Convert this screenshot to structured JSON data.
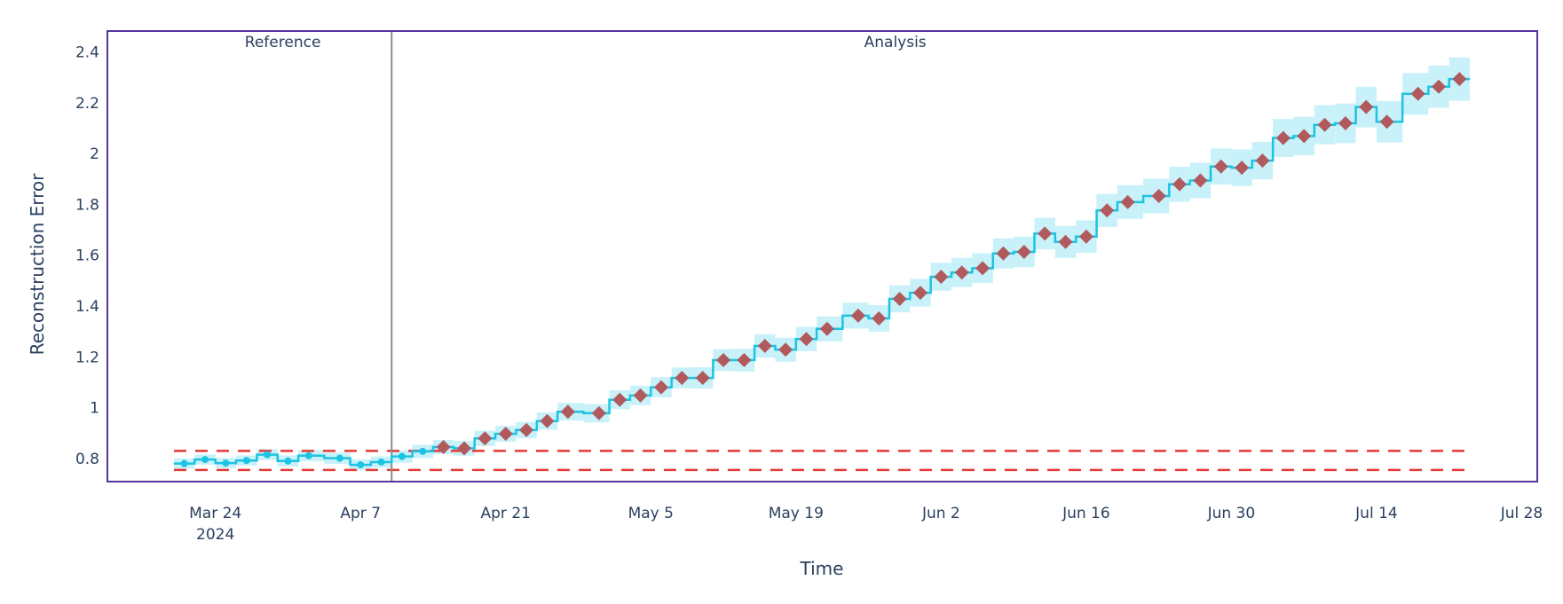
{
  "chart_data": {
    "type": "line",
    "xlabel": "Time",
    "ylabel": "Reconstruction Error",
    "x_type": "date",
    "xlim": [
      "2024-03-13T14:00",
      "2024-07-29T12:00"
    ],
    "ylim": [
      0.709,
      2.482
    ],
    "x_ticks": [
      {
        "date": "2024-03-24",
        "label": "Mar 24",
        "sublabel": "2024"
      },
      {
        "date": "2024-04-07",
        "label": "Apr 7"
      },
      {
        "date": "2024-04-21",
        "label": "Apr 21"
      },
      {
        "date": "2024-05-05",
        "label": "May 5"
      },
      {
        "date": "2024-05-19",
        "label": "May 19"
      },
      {
        "date": "2024-06-02",
        "label": "Jun 2"
      },
      {
        "date": "2024-06-16",
        "label": "Jun 16"
      },
      {
        "date": "2024-06-30",
        "label": "Jun 30"
      },
      {
        "date": "2024-07-14",
        "label": "Jul 14"
      },
      {
        "date": "2024-07-28",
        "label": "Jul 28"
      }
    ],
    "y_ticks": [
      {
        "value": 0.8,
        "label": "0.8"
      },
      {
        "value": 1.0,
        "label": "1"
      },
      {
        "value": 1.2,
        "label": "1.2"
      },
      {
        "value": 1.4,
        "label": "1.4"
      },
      {
        "value": 1.6,
        "label": "1.6"
      },
      {
        "value": 1.8,
        "label": "1.8"
      },
      {
        "value": 2.0,
        "label": "2"
      },
      {
        "value": 2.2,
        "label": "2.2"
      },
      {
        "value": 2.4,
        "label": "2.4"
      }
    ],
    "grid": false,
    "periods": [
      {
        "label": "Reference",
        "start": "2024-03-20",
        "end": "2024-04-10"
      },
      {
        "label": "Analysis",
        "start": "2024-04-10",
        "end": "2024-07-23"
      }
    ],
    "period_boundary": "2024-04-10",
    "thresholds": {
      "upper": 0.83,
      "lower": 0.755
    },
    "colors": {
      "line": "#1cc3e3",
      "band": "#c8f1f9",
      "alert_marker": "#b05a5e",
      "threshold": "#e53935",
      "boundary": "#8c8c8c",
      "frame": "#5533a0",
      "text": "#2a3f5f"
    },
    "series": [
      {
        "period": "reference",
        "x": [
          "2024-03-21",
          "2024-03-23",
          "2024-03-25",
          "2024-03-27",
          "2024-03-29",
          "2024-03-31",
          "2024-04-02",
          "2024-04-05",
          "2024-04-07",
          "2024-04-09"
        ],
        "y": [
          0.78,
          0.796,
          0.782,
          0.792,
          0.815,
          0.79,
          0.811,
          0.801,
          0.775,
          0.786
        ],
        "band_halfwidth": [
          0.02,
          0.02,
          0.02,
          0.02,
          0.022,
          0.022,
          0.022,
          0.022,
          0.022,
          0.022
        ]
      },
      {
        "period": "analysis",
        "x": [
          "2024-04-11",
          "2024-04-13",
          "2024-04-15",
          "2024-04-17",
          "2024-04-19",
          "2024-04-21",
          "2024-04-23",
          "2024-04-25",
          "2024-04-27",
          "2024-04-30",
          "2024-05-02",
          "2024-05-04",
          "2024-05-06",
          "2024-05-08",
          "2024-05-10",
          "2024-05-12",
          "2024-05-14",
          "2024-05-16",
          "2024-05-18",
          "2024-05-20",
          "2024-05-22",
          "2024-05-25",
          "2024-05-27",
          "2024-05-29",
          "2024-05-31",
          "2024-06-02",
          "2024-06-04",
          "2024-06-06",
          "2024-06-08",
          "2024-06-10",
          "2024-06-12",
          "2024-06-14",
          "2024-06-16",
          "2024-06-18",
          "2024-06-20",
          "2024-06-23",
          "2024-06-25",
          "2024-06-27",
          "2024-06-29",
          "2024-07-01",
          "2024-07-03",
          "2024-07-05",
          "2024-07-07",
          "2024-07-09",
          "2024-07-11",
          "2024-07-13",
          "2024-07-15",
          "2024-07-18",
          "2024-07-20",
          "2024-07-22"
        ],
        "y": [
          0.808,
          0.828,
          0.845,
          0.84,
          0.879,
          0.897,
          0.912,
          0.947,
          0.984,
          0.978,
          1.031,
          1.048,
          1.08,
          1.117,
          1.117,
          1.187,
          1.187,
          1.243,
          1.228,
          1.27,
          1.31,
          1.362,
          1.351,
          1.428,
          1.452,
          1.515,
          1.532,
          1.549,
          1.607,
          1.613,
          1.685,
          1.652,
          1.673,
          1.776,
          1.809,
          1.833,
          1.879,
          1.894,
          1.949,
          1.944,
          1.972,
          2.061,
          2.069,
          2.113,
          2.119,
          2.183,
          2.125,
          2.235,
          2.263,
          2.293
        ],
        "band_halfwidth": [
          0.025,
          0.026,
          0.028,
          0.029,
          0.03,
          0.031,
          0.032,
          0.034,
          0.035,
          0.036,
          0.037,
          0.038,
          0.04,
          0.041,
          0.042,
          0.043,
          0.045,
          0.046,
          0.047,
          0.048,
          0.049,
          0.051,
          0.052,
          0.053,
          0.054,
          0.055,
          0.057,
          0.058,
          0.059,
          0.06,
          0.062,
          0.063,
          0.064,
          0.065,
          0.066,
          0.068,
          0.069,
          0.07,
          0.071,
          0.072,
          0.074,
          0.075,
          0.076,
          0.077,
          0.078,
          0.08,
          0.081,
          0.082,
          0.083,
          0.085
        ]
      }
    ]
  }
}
